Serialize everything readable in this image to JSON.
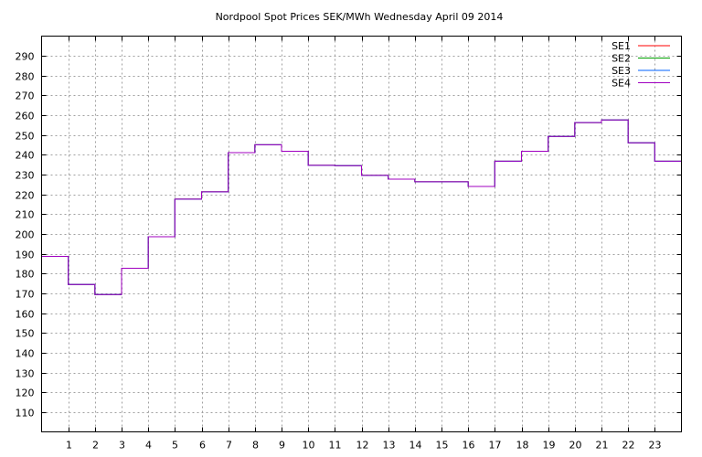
{
  "chart_data": {
    "type": "line",
    "step": true,
    "title": "Nordpool Spot Prices SEK/MWh Wednesday April 09 2014",
    "xlabel": "",
    "ylabel": "",
    "xlim": [
      0,
      24
    ],
    "ylim": [
      100,
      300
    ],
    "x_ticks": [
      1,
      2,
      3,
      4,
      5,
      6,
      7,
      8,
      9,
      10,
      11,
      12,
      13,
      14,
      15,
      16,
      17,
      18,
      19,
      20,
      21,
      22,
      23
    ],
    "y_ticks": [
      110,
      120,
      130,
      140,
      150,
      160,
      170,
      180,
      190,
      200,
      210,
      220,
      230,
      240,
      250,
      260,
      270,
      280,
      290
    ],
    "grid": true,
    "legend_position": "top-right",
    "x": [
      0,
      1,
      2,
      3,
      4,
      5,
      6,
      7,
      8,
      9,
      10,
      11,
      12,
      13,
      14,
      15,
      16,
      17,
      18,
      19,
      20,
      21,
      22,
      23
    ],
    "series": [
      {
        "name": "SE1",
        "color": "#ff0000",
        "values": [
          188.7,
          174.5,
          169.4,
          182.7,
          198.6,
          217.6,
          221.3,
          241.1,
          245.1,
          241.8,
          234.7,
          234.5,
          229.6,
          227.7,
          226.4,
          226.4,
          224.0,
          236.8,
          241.8,
          249.3,
          256.3,
          257.6,
          246.1,
          236.8
        ]
      },
      {
        "name": "SE2",
        "color": "#00a000",
        "values": [
          188.7,
          174.5,
          169.4,
          182.7,
          198.6,
          217.6,
          221.3,
          241.1,
          245.1,
          241.8,
          234.7,
          234.5,
          229.6,
          227.7,
          226.4,
          226.4,
          224.0,
          236.8,
          241.8,
          249.3,
          256.3,
          257.6,
          246.1,
          236.8
        ]
      },
      {
        "name": "SE3",
        "color": "#0060ff",
        "values": [
          188.7,
          174.5,
          169.4,
          182.7,
          198.6,
          217.6,
          221.3,
          241.1,
          245.1,
          241.8,
          234.7,
          234.5,
          229.6,
          227.7,
          226.4,
          226.4,
          224.0,
          236.8,
          241.8,
          249.3,
          256.3,
          257.6,
          246.1,
          236.8
        ]
      },
      {
        "name": "SE4",
        "color": "#a000c0",
        "values": [
          188.7,
          174.5,
          169.4,
          182.7,
          198.6,
          217.6,
          221.3,
          241.1,
          245.1,
          241.8,
          234.7,
          234.5,
          229.6,
          227.7,
          226.4,
          226.4,
          224.0,
          236.8,
          241.8,
          249.3,
          256.3,
          257.6,
          246.1,
          236.8
        ]
      }
    ]
  }
}
